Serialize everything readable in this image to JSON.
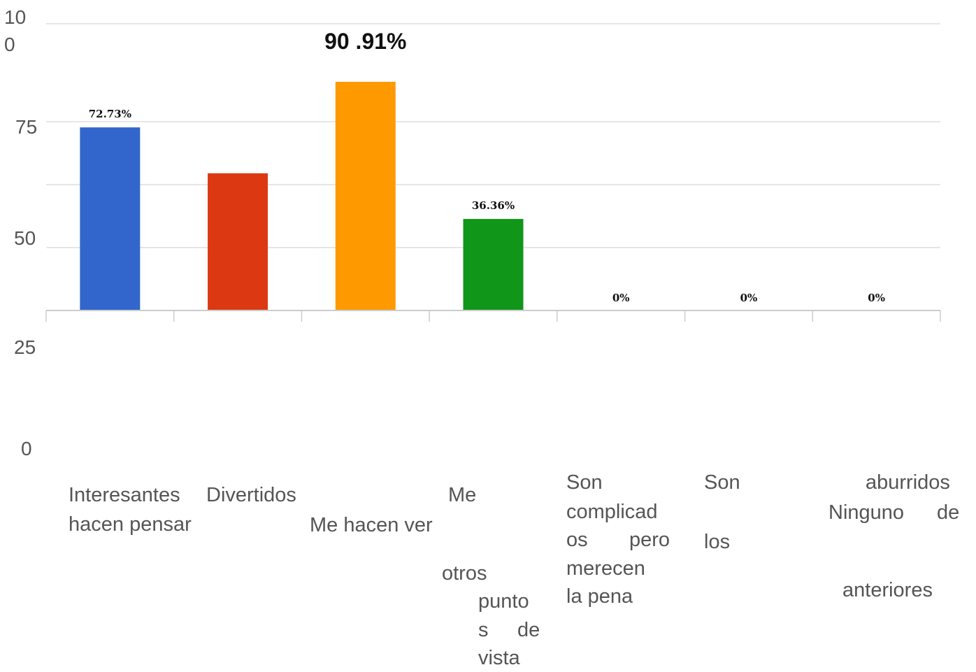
{
  "chart_data": {
    "type": "bar",
    "categories": [
      "Interesantes hacen pensar",
      "Divertidos",
      "Me hacen ver otros puntos de vista",
      "Me",
      "Son complicados pero merecen la pena",
      "Son aburridos",
      "Ninguno de los anteriores"
    ],
    "values": [
      72.73,
      54.5,
      90.91,
      36.36,
      0,
      0,
      0
    ],
    "data_labels": [
      "72.73%",
      "",
      "90 .91%",
      "36.36%",
      "0%",
      "0%",
      "0%"
    ],
    "y_ticks": [
      "10\n0",
      "75",
      "50",
      "25",
      "0"
    ],
    "colors": [
      "#3366cc",
      "#dc3912",
      "#ff9900",
      "#109618",
      "#990099",
      "#0099c6",
      "#dd4477"
    ],
    "ylim": [
      0,
      100
    ],
    "grid": true
  },
  "labels": {
    "l1": "Interesantes",
    "l2": "hacen pensar",
    "l3": "Divertidos",
    "l4": "Me",
    "l5": "Me hacen ver",
    "l6": "otros",
    "l7": "punto",
    "l8": "s",
    "l9": "de",
    "l10": "vista",
    "l11": "Son",
    "l12": "complicad",
    "l13": "os",
    "l14": "pero",
    "l15": "merecen",
    "l16": "la pena",
    "l17": "Son",
    "l18": "los",
    "l19": "aburridos",
    "l20": "Ninguno",
    "l21": "de",
    "l22": "anteriores"
  }
}
